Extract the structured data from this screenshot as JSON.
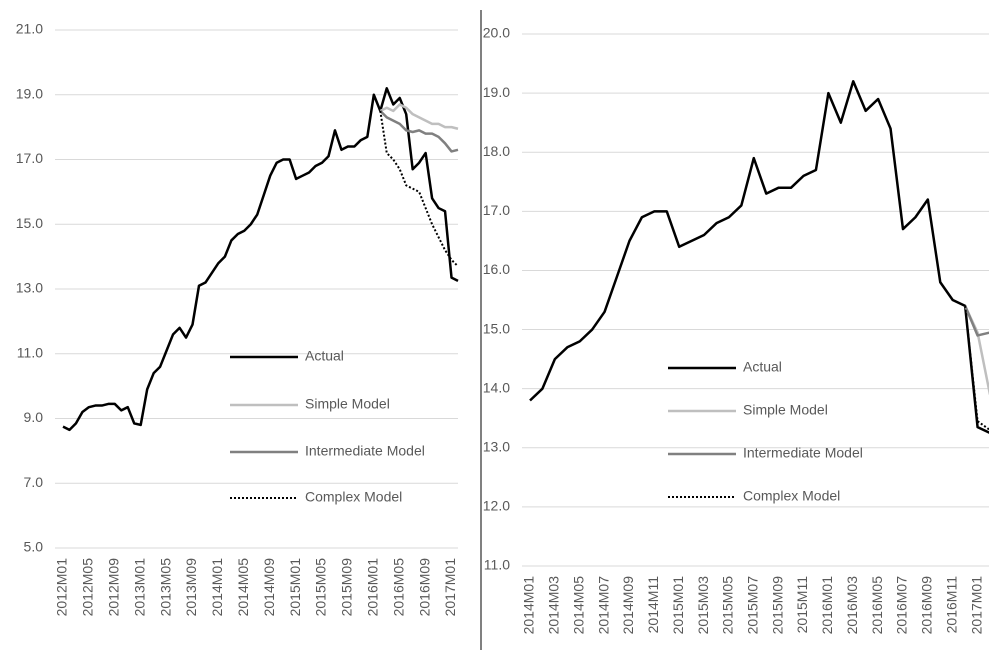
{
  "chart_data": [
    {
      "type": "line",
      "categories": [
        "2012M01",
        null,
        null,
        null,
        "2012M05",
        null,
        null,
        null,
        "2012M09",
        null,
        null,
        null,
        "2013M01",
        null,
        null,
        null,
        "2013M05",
        null,
        null,
        null,
        "2013M09",
        null,
        null,
        null,
        "2014M01",
        null,
        null,
        null,
        "2014M05",
        null,
        null,
        null,
        "2014M09",
        null,
        null,
        null,
        "2015M01",
        null,
        null,
        null,
        "2015M05",
        null,
        null,
        null,
        "2015M09",
        null,
        null,
        null,
        "2016M01",
        null,
        null,
        null,
        "2016M05",
        null,
        null,
        null,
        "2016M09",
        null,
        null,
        null,
        "2017M01",
        null
      ],
      "series": [
        {
          "name": "Actual",
          "color": "#000000",
          "dash": false,
          "values": [
            8.75,
            8.65,
            8.85,
            9.2,
            9.35,
            9.4,
            9.4,
            9.45,
            9.45,
            9.25,
            9.35,
            8.85,
            8.8,
            9.9,
            10.4,
            10.6,
            11.1,
            11.6,
            11.8,
            11.5,
            11.9,
            13.1,
            13.2,
            13.5,
            13.8,
            14.0,
            14.5,
            14.7,
            14.8,
            15.0,
            15.3,
            15.9,
            16.5,
            16.9,
            17.0,
            17.0,
            16.4,
            16.5,
            16.6,
            16.8,
            16.9,
            17.1,
            17.9,
            17.3,
            17.4,
            17.4,
            17.6,
            17.7,
            19.0,
            18.5,
            19.2,
            18.7,
            18.9,
            18.4,
            16.7,
            16.9,
            17.2,
            15.8,
            15.5,
            15.4,
            13.35,
            13.25
          ]
        },
        {
          "name": "Simple Model",
          "color": "#bfbfbf",
          "dash": false,
          "values": [
            null,
            null,
            null,
            null,
            null,
            null,
            null,
            null,
            null,
            null,
            null,
            null,
            null,
            null,
            null,
            null,
            null,
            null,
            null,
            null,
            null,
            null,
            null,
            null,
            null,
            null,
            null,
            null,
            null,
            null,
            null,
            null,
            null,
            null,
            null,
            null,
            null,
            null,
            null,
            null,
            null,
            null,
            null,
            null,
            null,
            null,
            null,
            null,
            null,
            18.5,
            18.6,
            18.5,
            18.7,
            18.6,
            18.4,
            18.3,
            18.2,
            18.1,
            18.1,
            18.0,
            18.0,
            17.95
          ]
        },
        {
          "name": "Intermediate Model",
          "color": "#808080",
          "dash": false,
          "values": [
            null,
            null,
            null,
            null,
            null,
            null,
            null,
            null,
            null,
            null,
            null,
            null,
            null,
            null,
            null,
            null,
            null,
            null,
            null,
            null,
            null,
            null,
            null,
            null,
            null,
            null,
            null,
            null,
            null,
            null,
            null,
            null,
            null,
            null,
            null,
            null,
            null,
            null,
            null,
            null,
            null,
            null,
            null,
            null,
            null,
            null,
            null,
            null,
            null,
            18.5,
            18.3,
            18.2,
            18.1,
            17.9,
            17.85,
            17.9,
            17.8,
            17.8,
            17.7,
            17.5,
            17.25,
            17.3
          ]
        },
        {
          "name": "Complex Model",
          "color": "#000000",
          "dash": true,
          "values": [
            null,
            null,
            null,
            null,
            null,
            null,
            null,
            null,
            null,
            null,
            null,
            null,
            null,
            null,
            null,
            null,
            null,
            null,
            null,
            null,
            null,
            null,
            null,
            null,
            null,
            null,
            null,
            null,
            null,
            null,
            null,
            null,
            null,
            null,
            null,
            null,
            null,
            null,
            null,
            null,
            null,
            null,
            null,
            null,
            null,
            null,
            null,
            null,
            null,
            18.5,
            17.2,
            17.0,
            16.7,
            16.2,
            16.1,
            16.0,
            15.5,
            15.0,
            14.6,
            14.2,
            13.9,
            13.7
          ]
        }
      ],
      "ylim": [
        5,
        21
      ],
      "yticks": [
        {
          "value": 5,
          "label": "5.0"
        },
        {
          "value": 7,
          "label": "7.0"
        },
        {
          "value": 9,
          "label": "9.0"
        },
        {
          "value": 11,
          "label": "11.0"
        },
        {
          "value": 13,
          "label": "13.0"
        },
        {
          "value": 15,
          "label": "15.0"
        },
        {
          "value": 17,
          "label": "17.0"
        },
        {
          "value": 19,
          "label": "19.0"
        },
        {
          "value": 21,
          "label": "21.0"
        }
      ],
      "grid": true
    },
    {
      "type": "line",
      "categories": [
        "2014M01",
        null,
        "2014M03",
        null,
        "2014M05",
        null,
        "2014M07",
        null,
        "2014M09",
        null,
        "2014M11",
        null,
        "2015M01",
        null,
        "2015M03",
        null,
        "2015M05",
        null,
        "2015M07",
        null,
        "2015M09",
        null,
        "2015M11",
        null,
        "2016M01",
        null,
        "2016M03",
        null,
        "2016M05",
        null,
        "2016M07",
        null,
        "2016M09",
        null,
        "2016M11",
        null,
        "2017M01",
        null
      ],
      "series": [
        {
          "name": "Actual",
          "color": "#000000",
          "dash": false,
          "values": [
            13.8,
            14.0,
            14.5,
            14.7,
            14.8,
            15.0,
            15.3,
            15.9,
            16.5,
            16.9,
            17.0,
            17.0,
            16.4,
            16.5,
            16.6,
            16.8,
            16.9,
            17.1,
            17.9,
            17.3,
            17.4,
            17.4,
            17.6,
            17.7,
            19.0,
            18.5,
            19.2,
            18.7,
            18.9,
            18.4,
            16.7,
            16.9,
            17.2,
            15.8,
            15.5,
            15.4,
            13.35,
            13.25
          ]
        },
        {
          "name": "Simple Model",
          "color": "#bfbfbf",
          "dash": false,
          "values": [
            null,
            null,
            null,
            null,
            null,
            null,
            null,
            null,
            null,
            null,
            null,
            null,
            null,
            null,
            null,
            null,
            null,
            null,
            null,
            null,
            null,
            null,
            null,
            null,
            null,
            null,
            null,
            null,
            null,
            null,
            null,
            null,
            null,
            null,
            null,
            15.4,
            14.95,
            13.9
          ]
        },
        {
          "name": "Intermediate Model",
          "color": "#808080",
          "dash": false,
          "values": [
            null,
            null,
            null,
            null,
            null,
            null,
            null,
            null,
            null,
            null,
            null,
            null,
            null,
            null,
            null,
            null,
            null,
            null,
            null,
            null,
            null,
            null,
            null,
            null,
            null,
            null,
            null,
            null,
            null,
            null,
            null,
            null,
            null,
            null,
            null,
            15.4,
            14.9,
            14.95
          ]
        },
        {
          "name": "Complex Model",
          "color": "#000000",
          "dash": true,
          "values": [
            null,
            null,
            null,
            null,
            null,
            null,
            null,
            null,
            null,
            null,
            null,
            null,
            null,
            null,
            null,
            null,
            null,
            null,
            null,
            null,
            null,
            null,
            null,
            null,
            null,
            null,
            null,
            null,
            null,
            null,
            null,
            null,
            null,
            null,
            null,
            15.4,
            13.45,
            13.3
          ]
        }
      ],
      "ylim": [
        11,
        20
      ],
      "yticks": [
        {
          "value": 11,
          "label": "11.0"
        },
        {
          "value": 12,
          "label": "12.0"
        },
        {
          "value": 13,
          "label": "13.0"
        },
        {
          "value": 14,
          "label": "14.0"
        },
        {
          "value": 15,
          "label": "15.0"
        },
        {
          "value": 16,
          "label": "16.0"
        },
        {
          "value": 17,
          "label": "17.0"
        },
        {
          "value": 18,
          "label": "18.0"
        },
        {
          "value": 19,
          "label": "19.0"
        },
        {
          "value": 20,
          "label": "20.0"
        }
      ],
      "grid": true
    }
  ]
}
